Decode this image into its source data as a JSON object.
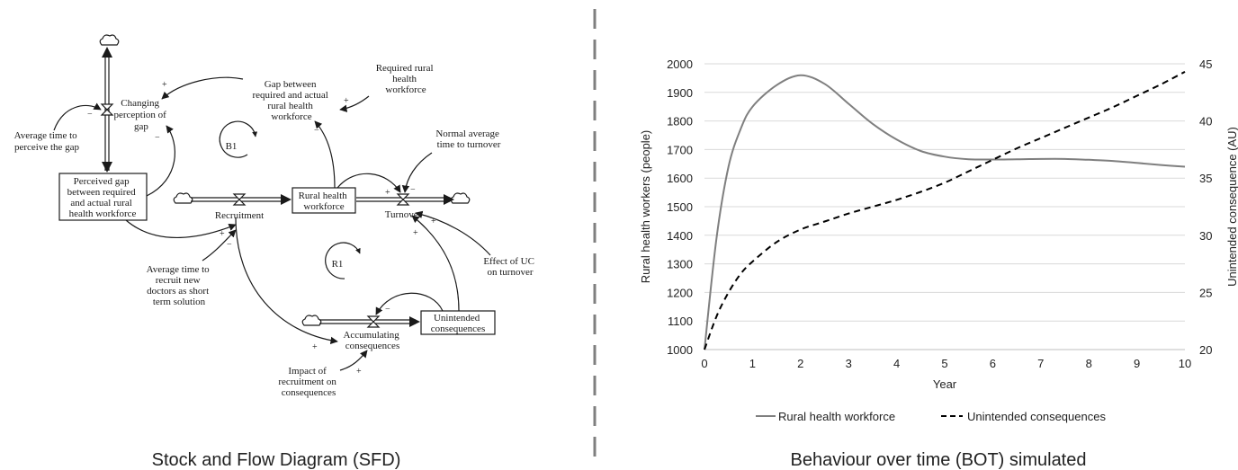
{
  "divider_color": "#7f7f7f",
  "sfd": {
    "caption": "Stock and Flow Diagram (SFD)",
    "stocks": {
      "perceived_gap": [
        "Perceived gap",
        "between required",
        "and actual rural",
        "health workforce"
      ],
      "rural_workforce": [
        "Rural health",
        "workforce"
      ],
      "unintended": [
        "Unintended",
        "consequences"
      ]
    },
    "flows": {
      "changing_perception": [
        "Changing",
        "perception of",
        "gap"
      ],
      "recruitment": "Recruitment",
      "turnover": "Turnover",
      "accumulating": [
        "Accumulating",
        "consequences"
      ]
    },
    "variables": {
      "avg_time_perceive": [
        "Average time to",
        "perceive the gap"
      ],
      "gap": [
        "Gap between",
        "required and actual",
        "rural health",
        "workforce"
      ],
      "required": [
        "Required rural",
        "health",
        "workforce"
      ],
      "normal_turnover": [
        "Normal average",
        "time to turnover"
      ],
      "avg_time_recruit": [
        "Average time to",
        "recruit new",
        "doctors as short",
        "term solution"
      ],
      "effect_uc": [
        "Effect of UC",
        "on turnover"
      ],
      "impact_recruitment": [
        "Impact of",
        "recruitment on",
        "consequences"
      ]
    },
    "loops": {
      "b1": "B1",
      "r1": "R1"
    },
    "polarity": {
      "plus": "+",
      "minus": "−"
    }
  },
  "chart_data": {
    "type": "line",
    "title": "Behaviour over time (BOT) simulated",
    "xlabel": "Year",
    "ylabel": "Rural health workers (people)",
    "y2label": "Unintended consequence (AU)",
    "x": [
      0,
      0.25,
      0.5,
      0.75,
      1,
      1.5,
      2,
      2.5,
      3,
      3.5,
      4,
      4.5,
      5,
      5.5,
      6,
      6.5,
      7,
      7.5,
      8,
      8.5,
      9,
      9.5,
      10
    ],
    "xlim": [
      0,
      10
    ],
    "ylim": [
      1000,
      2000
    ],
    "y2lim": [
      20,
      45
    ],
    "xticks": [
      "0",
      "1",
      "2",
      "3",
      "4",
      "5",
      "6",
      "7",
      "8",
      "9",
      "10"
    ],
    "yticks": [
      "1000",
      "1100",
      "1200",
      "1300",
      "1400",
      "1500",
      "1600",
      "1700",
      "1800",
      "1900",
      "2000"
    ],
    "y2ticks": [
      "20",
      "25",
      "30",
      "35",
      "40",
      "45"
    ],
    "grid": true,
    "legend_position": "bottom",
    "series": [
      {
        "name": "Rural health workforce",
        "axis": "left",
        "style": "solid",
        "color": "#7f7f7f",
        "values": [
          1000,
          1390,
          1640,
          1770,
          1850,
          1925,
          1960,
          1930,
          1860,
          1790,
          1735,
          1695,
          1675,
          1666,
          1665,
          1666,
          1667,
          1667,
          1664,
          1660,
          1653,
          1646,
          1640
        ]
      },
      {
        "name": "Unintended consequences",
        "axis": "right",
        "style": "dashed",
        "color": "#000000",
        "values": [
          20,
          22.9,
          25,
          26.6,
          27.7,
          29.4,
          30.5,
          31.2,
          31.9,
          32.5,
          33.1,
          33.8,
          34.6,
          35.6,
          36.6,
          37.6,
          38.5,
          39.4,
          40.3,
          41.2,
          42.2,
          43.2,
          44.3
        ]
      }
    ]
  }
}
